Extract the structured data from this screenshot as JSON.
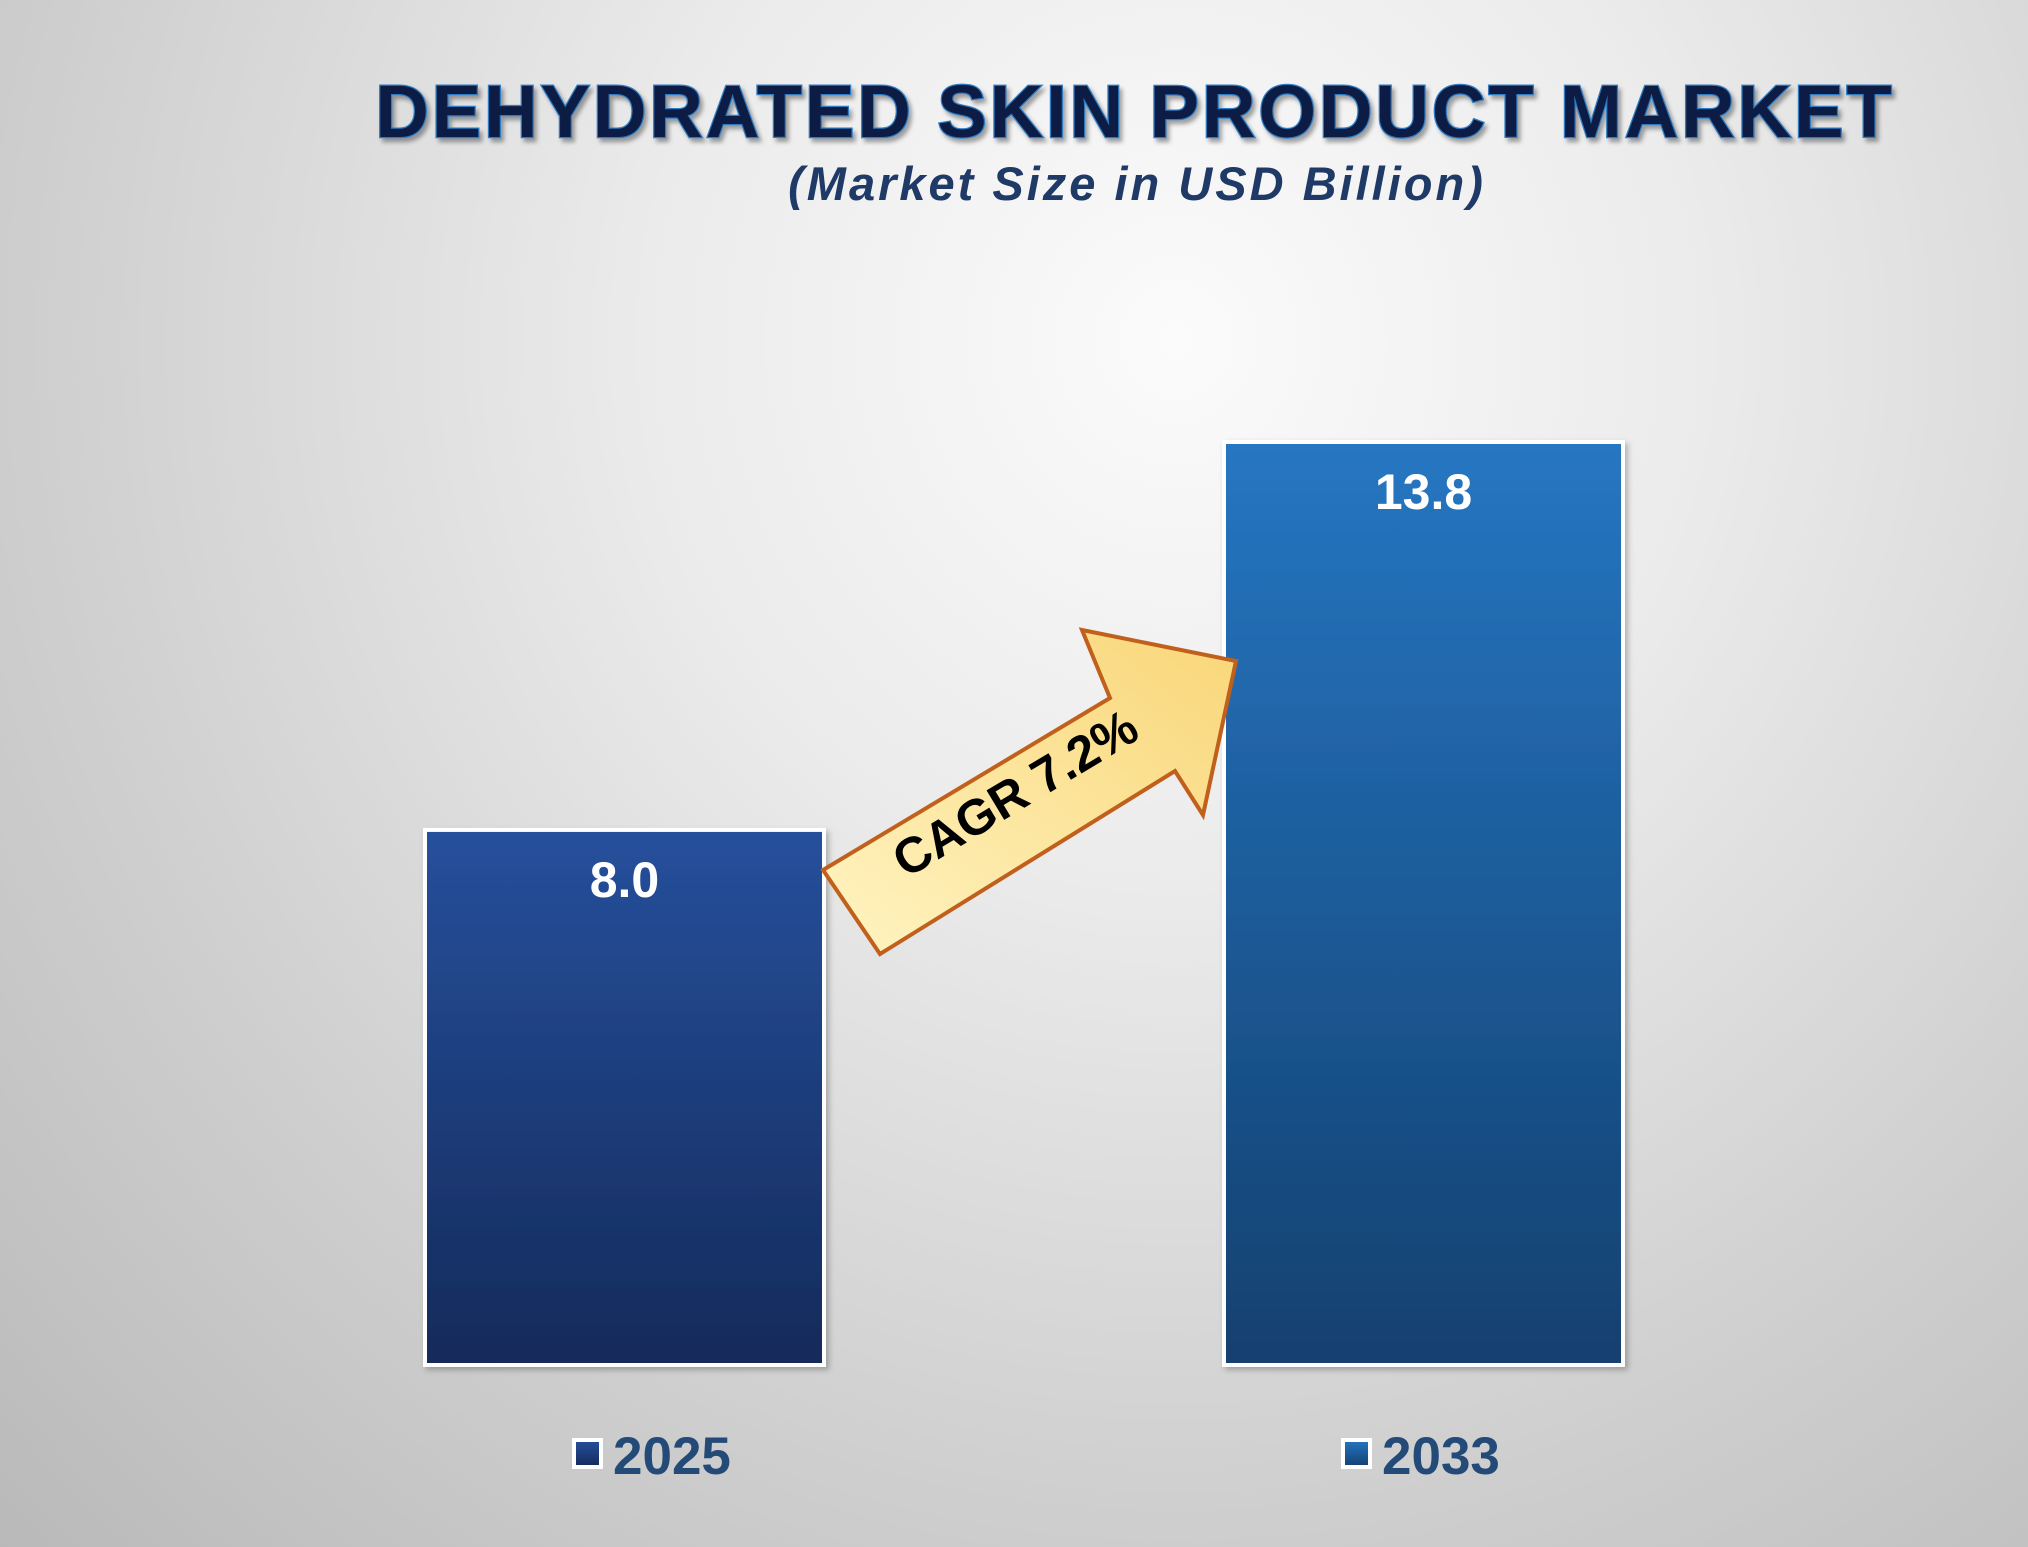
{
  "chart_data": {
    "type": "bar",
    "title": "DEHYDRATED SKIN PRODUCT MARKET",
    "subtitle": "(Market Size in USD Billion)",
    "categories": [
      "2025",
      "2033"
    ],
    "values": [
      8.0,
      13.8
    ],
    "value_labels": [
      "8.0",
      "13.8"
    ],
    "ylim": [
      0,
      13.8
    ],
    "grid": false,
    "legend_placement": "bottom",
    "annotation": "CAGR 7.2%",
    "colors": {
      "bar_2025_top": "#26509c",
      "bar_2025_bottom": "#142a5a",
      "bar_2033_top": "#2676c2",
      "bar_2033_bottom": "#13406f",
      "bar_border": "#ffffff",
      "arrow_fill_top": "#fff4c2",
      "arrow_fill_bottom": "#f9d678",
      "arrow_stroke": "#c0601c",
      "title_fill": "#0b1f45",
      "legend_text": "#244a78"
    }
  }
}
